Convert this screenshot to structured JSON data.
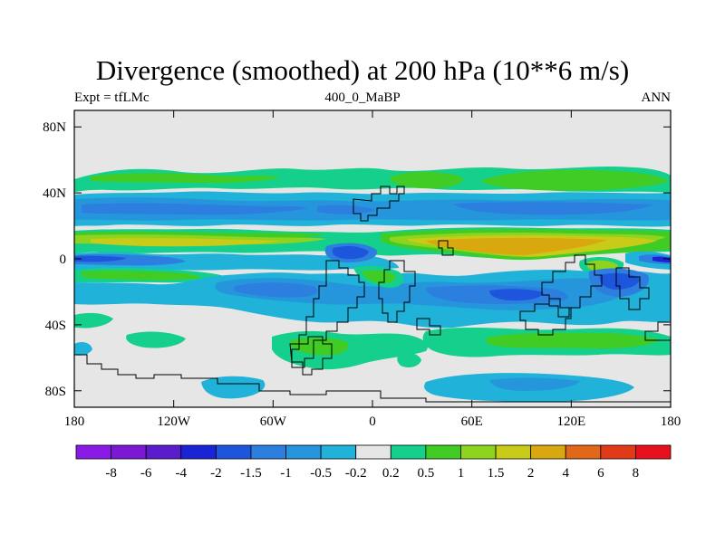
{
  "title": "Divergence (smoothed) at 200 hPa (10**6 m/s)",
  "subtitle_left": "Expt = tfLMc",
  "subtitle_center": "400_0_MaBP",
  "subtitle_right": "ANN",
  "chart_data": {
    "type": "heatmap",
    "projection": "cylindrical-equidistant",
    "xlim": [
      -180,
      180
    ],
    "ylim": [
      -90,
      90
    ],
    "x_ticks": [
      {
        "value": -180,
        "label": "180"
      },
      {
        "value": -120,
        "label": "120W"
      },
      {
        "value": -60,
        "label": "60W"
      },
      {
        "value": 0,
        "label": "0"
      },
      {
        "value": 60,
        "label": "60E"
      },
      {
        "value": 120,
        "label": "120E"
      },
      {
        "value": 180,
        "label": "180"
      }
    ],
    "y_ticks": [
      {
        "value": 80,
        "label": "80N"
      },
      {
        "value": 40,
        "label": "40N"
      },
      {
        "value": 0,
        "label": "0"
      },
      {
        "value": -40,
        "label": "40S"
      },
      {
        "value": -80,
        "label": "80S"
      }
    ],
    "colorbar": {
      "labels": [
        "-8",
        "-6",
        "-4",
        "-2",
        "-1.5",
        "-1",
        "-0.5",
        "-0.2",
        "0.2",
        "0.5",
        "1",
        "1.5",
        "2",
        "4",
        "6",
        "8"
      ],
      "colors": [
        "#8a1ae6",
        "#7b18d6",
        "#5a1ccc",
        "#1a23d6",
        "#1d56dc",
        "#2c7fde",
        "#2596dc",
        "#20b2d8",
        "#e6e6e6",
        "#14d08c",
        "#40cc24",
        "#8ed31e",
        "#c8cc18",
        "#d8a80e",
        "#e06818",
        "#e03a18",
        "#e8101c"
      ]
    },
    "fields": [
      {
        "name": "mid-latitude positive band 45N",
        "level": 0.5,
        "lon": [
          -160,
          180
        ],
        "lat": [
          40,
          50
        ]
      },
      {
        "name": "subtropical negative band 30N",
        "level": -1,
        "lon": [
          -180,
          180
        ],
        "lat": [
          22,
          35
        ]
      },
      {
        "name": "tropical positive band 10N",
        "level": 2,
        "lon": [
          40,
          140
        ],
        "lat": [
          2,
          14
        ]
      },
      {
        "name": "equatorial negative band",
        "level": -2,
        "lon": [
          -180,
          -120
        ],
        "lat": [
          -4,
          2
        ]
      },
      {
        "name": "southern subtropical negative region",
        "level": -1.5,
        "lon": [
          -110,
          -40
        ],
        "lat": [
          -28,
          -12
        ]
      },
      {
        "name": "southern positive band 45S",
        "level": 0.5,
        "lon": [
          -180,
          180
        ],
        "lat": [
          -50,
          -38
        ]
      },
      {
        "name": "antarctic negative patch",
        "level": -0.5,
        "lon": [
          30,
          120
        ],
        "lat": [
          -72,
          -62
        ]
      }
    ]
  }
}
